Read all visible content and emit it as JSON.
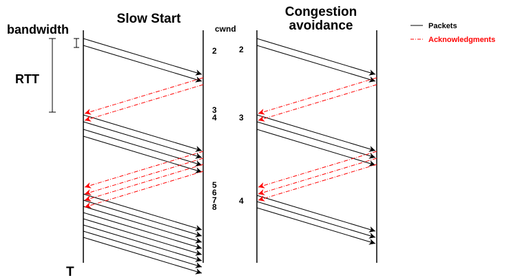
{
  "titles": {
    "slow_start": "Slow Start",
    "congestion_line1": "Congestion",
    "congestion_line2": "avoidance"
  },
  "labels": {
    "bandwidth": "bandwidth",
    "rtt": "RTT",
    "cwnd": "cwnd",
    "time": "T"
  },
  "legend": {
    "packets": "Packets",
    "acknowledgments": "Acknowledgments"
  },
  "colors": {
    "packet": "#000000",
    "ack": "#ff0000",
    "ack_label": "#ff0000"
  },
  "slow_start_cwnd": [
    "2",
    "3",
    "4",
    "5",
    "6",
    "7",
    "8"
  ],
  "congestion_avoidance_cwnd": [
    "2",
    "3",
    "4"
  ]
}
